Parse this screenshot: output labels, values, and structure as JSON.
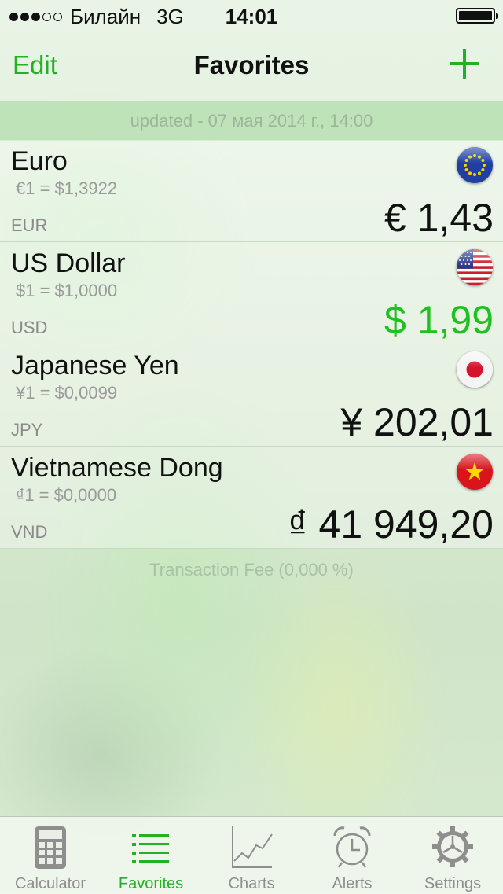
{
  "status_bar": {
    "carrier": "Билайн",
    "network": "3G",
    "time": "14:01",
    "signal_bars": 3,
    "signal_total": 5,
    "battery_level": 1.0
  },
  "nav": {
    "edit_label": "Edit",
    "title": "Favorites",
    "add_icon": "plus-icon"
  },
  "updated_text": "updated - 07 мая 2014 г., 14:00",
  "currencies": [
    {
      "name": "Euro",
      "rate": "€1 =  $1,3922",
      "code": "EUR",
      "value": "€ 1,43",
      "highlight": false,
      "flag_icon": "eu-flag-icon"
    },
    {
      "name": "US Dollar",
      "rate": "$1 =  $1,0000",
      "code": "USD",
      "value": "$ 1,99",
      "highlight": true,
      "flag_icon": "us-flag-icon"
    },
    {
      "name": "Japanese Yen",
      "rate": "¥1 =  $0,0099",
      "code": "JPY",
      "value": "¥ 202,01",
      "highlight": false,
      "flag_icon": "japan-flag-icon"
    },
    {
      "name": "Vietnamese Dong",
      "rate": "₫1 =  $0,0000",
      "code": "VND",
      "value": "₫ 41 949,20",
      "highlight": false,
      "flag_icon": "vietnam-flag-icon"
    }
  ],
  "transaction_fee": "Transaction Fee (0,000 %)",
  "tabs": [
    {
      "label": "Calculator",
      "icon": "calculator-icon",
      "active": false
    },
    {
      "label": "Favorites",
      "icon": "list-icon",
      "active": true
    },
    {
      "label": "Charts",
      "icon": "chart-icon",
      "active": false
    },
    {
      "label": "Alerts",
      "icon": "alarm-clock-icon",
      "active": false
    },
    {
      "label": "Settings",
      "icon": "gear-icon",
      "active": false
    }
  ],
  "colors": {
    "accent": "#22b122",
    "highlight_value": "#1fc01f",
    "updated_bar": "#bfe3b8"
  }
}
